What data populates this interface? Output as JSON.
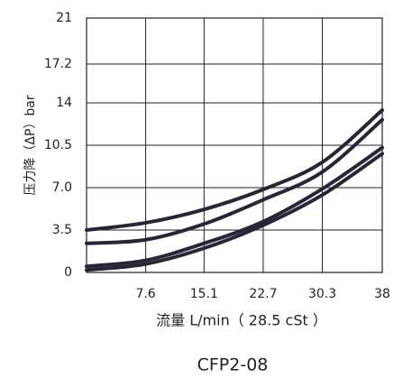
{
  "chart_data": {
    "type": "line",
    "title": "CFP2-08",
    "x_label": "流量 L/min（ 28.5 cSt ）",
    "y_label": "压力降（ΔP）bar",
    "x": [
      0,
      7.6,
      15.1,
      22.7,
      30.3,
      38
    ],
    "series": [
      {
        "color": "#262636",
        "values": [
          3.5,
          4.1,
          5.2,
          6.85,
          9.1,
          13.4
        ]
      },
      {
        "color": "#262636",
        "values": [
          2.4,
          2.7,
          4.0,
          6.0,
          8.3,
          12.6
        ]
      },
      {
        "color": "#262636",
        "values": [
          0.5,
          1.0,
          2.4,
          4.2,
          6.9,
          10.3
        ]
      },
      {
        "color": "#262636",
        "values": [
          0.2,
          0.7,
          2.0,
          3.9,
          6.4,
          9.8
        ]
      }
    ],
    "xlim": [
      0,
      38
    ],
    "xticks": [
      7.6,
      15.1,
      22.7,
      30.3,
      38
    ],
    "ylim": [
      0,
      21
    ],
    "yticks": [
      0,
      3.5,
      {
        "value": 7,
        "label": "7.0"
      },
      10.5,
      14,
      17.2,
      21
    ],
    "grid": true
  }
}
